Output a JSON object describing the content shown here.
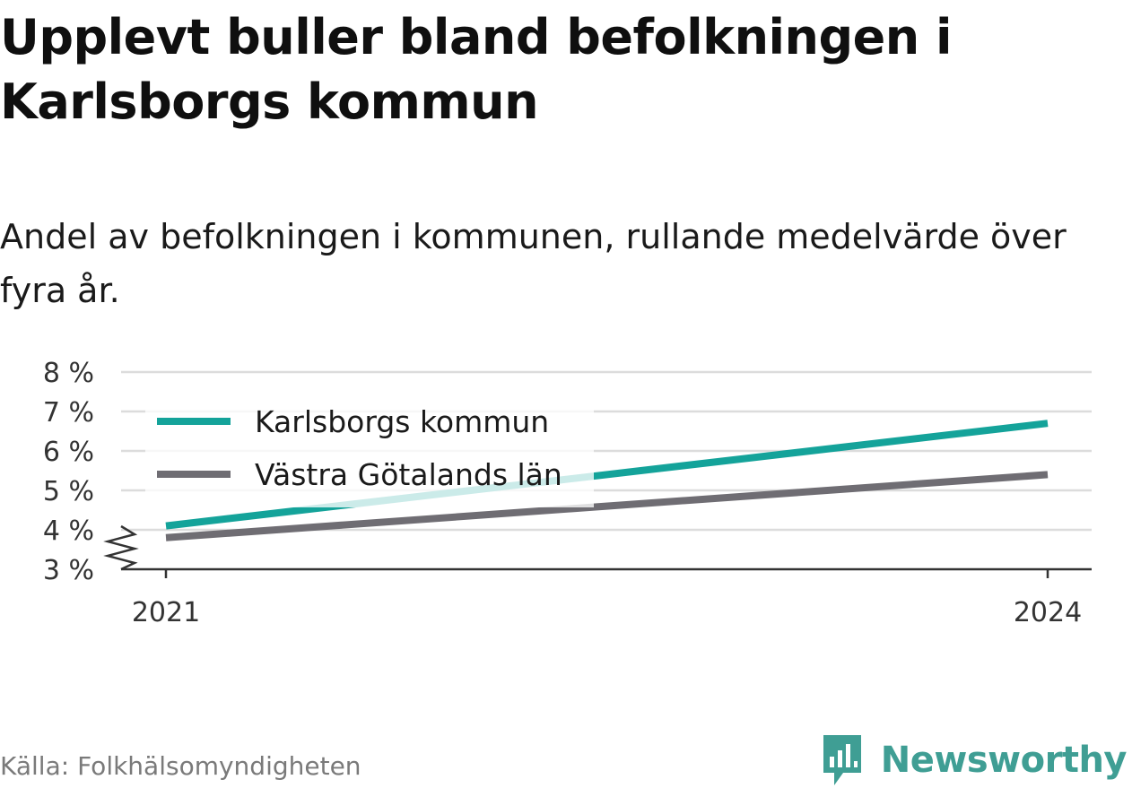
{
  "title": "Upplevt buller bland befolkningen i Karlsborgs kommun",
  "subtitle": "Andel av befolkningen i kommunen, rullande medelvärde över fyra år.",
  "source": "Källa: Folkhälsomyndigheten",
  "logo_text": "Newsworthy",
  "colors": {
    "accent": "#14a39a",
    "secondary": "#6f6d73",
    "brand": "#3f9e94"
  },
  "chart_data": {
    "type": "line",
    "x": [
      2021,
      2024
    ],
    "x_ticks": [
      "2021",
      "2024"
    ],
    "y_ticks": [
      "3 %",
      "4 %",
      "5 %",
      "6 %",
      "7 %",
      "8 %"
    ],
    "ylim": [
      3,
      8
    ],
    "y_axis_break": true,
    "grid": true,
    "legend_position": "top-left",
    "series": [
      {
        "name": "Karlsborgs kommun",
        "color": "#14a39a",
        "values": [
          4.1,
          6.7
        ]
      },
      {
        "name": "Västra Götalands län",
        "color": "#6f6d73",
        "values": [
          3.8,
          5.4
        ]
      }
    ]
  }
}
